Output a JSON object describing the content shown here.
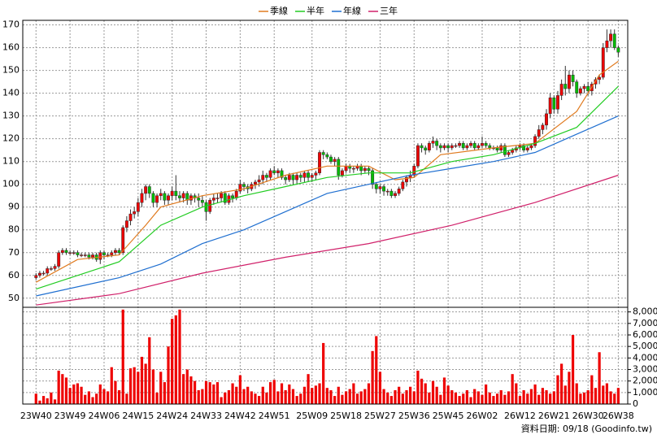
{
  "chart_data": {
    "type": "candlestick",
    "xlim": [
      -3.5,
      156.5
    ],
    "xticks": [
      {
        "value": 0,
        "label": "23W40"
      },
      {
        "value": 9,
        "label": "23W49"
      },
      {
        "value": 18,
        "label": "24W06"
      },
      {
        "value": 27,
        "label": "24W15"
      },
      {
        "value": 36,
        "label": "24W24"
      },
      {
        "value": 45,
        "label": "24W33"
      },
      {
        "value": 54,
        "label": "24W42"
      },
      {
        "value": 63,
        "label": "24W51"
      },
      {
        "value": 73,
        "label": "25W09"
      },
      {
        "value": 82,
        "label": "25W18"
      },
      {
        "value": 91,
        "label": "25W27"
      },
      {
        "value": 100,
        "label": "25W36"
      },
      {
        "value": 109,
        "label": "25W45"
      },
      {
        "value": 118,
        "label": "26W02"
      },
      {
        "value": 128,
        "label": "26W12"
      },
      {
        "value": 137,
        "label": "26W21"
      },
      {
        "value": 146,
        "label": "26W30"
      },
      {
        "value": 154,
        "label": "26W38"
      }
    ],
    "ylim": [
      46,
      172
    ],
    "yticks": [
      50,
      60,
      70,
      80,
      90,
      100,
      110,
      120,
      130,
      140,
      150,
      160,
      170
    ],
    "grid": true,
    "up_color": "#ee0000",
    "down_color": "#00bb00",
    "open": [
      59,
      60,
      61,
      61,
      63,
      63,
      64,
      70,
      71,
      70,
      70,
      70,
      69,
      69,
      69,
      68,
      69,
      67,
      70,
      69,
      69,
      70,
      71,
      70,
      81,
      84,
      87,
      88,
      92,
      96,
      99,
      96,
      92,
      95,
      96,
      93,
      95,
      97,
      95,
      94,
      96,
      93,
      95,
      94,
      93,
      92,
      88,
      93,
      94,
      94,
      96,
      92,
      95,
      94,
      97,
      100,
      99,
      98,
      100,
      101,
      102,
      104,
      103,
      106,
      105,
      106,
      103,
      102,
      104,
      102,
      104,
      103,
      105,
      103,
      104,
      105,
      114,
      113,
      112,
      110,
      111,
      104,
      106,
      108,
      107,
      107,
      108,
      106,
      107,
      106,
      100,
      98,
      99,
      97,
      97,
      95,
      96,
      98,
      101,
      103,
      104,
      108,
      117,
      116,
      115,
      118,
      119,
      117,
      116,
      117,
      116,
      117,
      117,
      118,
      116,
      117,
      118,
      116,
      117,
      118,
      117,
      116,
      116,
      115,
      117,
      113,
      114,
      115,
      116,
      117,
      115,
      116,
      117,
      121,
      124,
      126,
      131,
      138,
      133,
      139,
      144,
      142,
      148,
      145,
      140,
      142,
      143,
      141,
      144,
      146,
      147,
      160,
      163,
      166,
      160
    ],
    "high": [
      61,
      62,
      62,
      64,
      64,
      65,
      71,
      72,
      72,
      71,
      71,
      71,
      70,
      70,
      70,
      70,
      70,
      71,
      71,
      70,
      71,
      72,
      72,
      82,
      86,
      89,
      90,
      94,
      98,
      100,
      100,
      97,
      96,
      98,
      97,
      96,
      99,
      104,
      97,
      97,
      97,
      96,
      96,
      96,
      95,
      93,
      94,
      96,
      96,
      97,
      97,
      96,
      96,
      98,
      102,
      101,
      100,
      101,
      102,
      104,
      106,
      105,
      107,
      108,
      107,
      107,
      104,
      105,
      105,
      105,
      105,
      106,
      106,
      105,
      106,
      115,
      115,
      114,
      113,
      112,
      112,
      107,
      109,
      109,
      108,
      109,
      109,
      108,
      108,
      107,
      101,
      100,
      100,
      98,
      98,
      97,
      99,
      102,
      104,
      106,
      109,
      118,
      118,
      117,
      119,
      121,
      120,
      118,
      118,
      118,
      118,
      118,
      119,
      119,
      118,
      119,
      119,
      118,
      121,
      119,
      118,
      117,
      117,
      118,
      118,
      115,
      116,
      117,
      118,
      118,
      117,
      118,
      122,
      126,
      127,
      133,
      140,
      139,
      141,
      146,
      152,
      150,
      150,
      146,
      143,
      144,
      145,
      145,
      147,
      148,
      162,
      168,
      168,
      168,
      161
    ],
    "low": [
      58,
      59,
      60,
      60,
      62,
      62,
      63,
      69,
      69,
      69,
      69,
      68,
      68,
      68,
      67,
      67,
      66,
      65,
      67,
      68,
      68,
      69,
      69,
      69,
      79,
      82,
      85,
      86,
      90,
      93,
      94,
      90,
      90,
      93,
      91,
      91,
      93,
      93,
      92,
      92,
      91,
      91,
      92,
      90,
      90,
      84,
      87,
      91,
      92,
      92,
      91,
      91,
      92,
      93,
      96,
      97,
      96,
      97,
      98,
      99,
      100,
      101,
      102,
      104,
      103,
      102,
      100,
      101,
      100,
      100,
      101,
      101,
      101,
      101,
      102,
      104,
      111,
      111,
      109,
      108,
      102,
      103,
      105,
      105,
      105,
      106,
      104,
      105,
      104,
      98,
      96,
      96,
      95,
      95,
      94,
      94,
      95,
      97,
      99,
      101,
      103,
      107,
      114,
      113,
      114,
      116,
      115,
      114,
      115,
      114,
      115,
      116,
      116,
      115,
      115,
      116,
      115,
      115,
      116,
      116,
      115,
      115,
      114,
      114,
      112,
      112,
      113,
      114,
      115,
      114,
      114,
      115,
      116,
      120,
      122,
      124,
      129,
      131,
      131,
      137,
      139,
      140,
      143,
      138,
      139,
      140,
      139,
      139,
      142,
      144,
      146,
      158,
      160,
      159,
      156
    ],
    "close": [
      60,
      61,
      61,
      63,
      63,
      64,
      70,
      71,
      70,
      70,
      70,
      69,
      69,
      69,
      68,
      69,
      67,
      70,
      69,
      69,
      70,
      71,
      70,
      81,
      84,
      87,
      88,
      92,
      96,
      99,
      96,
      92,
      95,
      96,
      93,
      95,
      97,
      95,
      94,
      96,
      93,
      95,
      94,
      93,
      92,
      88,
      93,
      94,
      94,
      96,
      92,
      95,
      94,
      97,
      100,
      99,
      98,
      100,
      101,
      102,
      104,
      103,
      106,
      105,
      106,
      103,
      102,
      104,
      102,
      104,
      103,
      105,
      103,
      104,
      105,
      114,
      113,
      112,
      110,
      111,
      104,
      106,
      108,
      107,
      107,
      108,
      106,
      107,
      106,
      100,
      98,
      99,
      97,
      97,
      95,
      96,
      98,
      101,
      103,
      104,
      108,
      117,
      116,
      115,
      118,
      119,
      117,
      116,
      117,
      116,
      117,
      117,
      118,
      116,
      117,
      118,
      116,
      117,
      118,
      117,
      116,
      116,
      115,
      117,
      113,
      114,
      115,
      116,
      117,
      115,
      116,
      117,
      121,
      124,
      126,
      131,
      138,
      133,
      139,
      144,
      142,
      148,
      145,
      140,
      142,
      143,
      141,
      144,
      146,
      147,
      160,
      163,
      166,
      160,
      158
    ],
    "series": [
      {
        "name": "季線",
        "color": "#e07b20",
        "x": [
          0,
          11,
          22,
          29,
          33,
          44,
          55,
          66,
          77,
          88,
          95,
          100,
          107,
          121,
          132,
          143,
          149,
          154
        ],
        "values": [
          57,
          67,
          69,
          82,
          90,
          95,
          98,
          104,
          108,
          108,
          102,
          103,
          113,
          116,
          118,
          132,
          148,
          154
        ]
      },
      {
        "name": "半年",
        "color": "#22cc22",
        "x": [
          0,
          11,
          22,
          33,
          44,
          55,
          66,
          77,
          88,
          99,
          110,
          121,
          132,
          143,
          154
        ],
        "values": [
          54,
          60,
          66,
          82,
          90,
          95,
          99,
          103,
          105,
          105,
          110,
          113,
          118,
          125,
          143
        ]
      },
      {
        "name": "年線",
        "color": "#1f6fd0",
        "x": [
          0,
          22,
          33,
          44,
          55,
          66,
          77,
          88,
          99,
          110,
          121,
          132,
          143,
          154
        ],
        "values": [
          51,
          59,
          65,
          74,
          80,
          88,
          96,
          100,
          104,
          107,
          110,
          114,
          122,
          130
        ]
      },
      {
        "name": "三年",
        "color": "#d0206a",
        "x": [
          0,
          22,
          44,
          66,
          88,
          110,
          132,
          154
        ],
        "values": [
          47,
          52,
          61,
          68,
          74,
          82,
          92,
          104
        ]
      }
    ],
    "volume": {
      "color": "#ee0000",
      "ylim": [
        0,
        8400
      ],
      "yticks": [
        0,
        {
          "value": 1000,
          "label": "1,000"
        },
        {
          "value": 2000,
          "label": "2,000"
        },
        {
          "value": 3000,
          "label": "3,000"
        },
        {
          "value": 4000,
          "label": "4,000"
        },
        {
          "value": 5000,
          "label": "5,000"
        },
        {
          "value": 6000,
          "label": "6,000"
        },
        {
          "value": 7000,
          "label": "7,000"
        },
        {
          "value": 8000,
          "label": "8,000"
        }
      ],
      "values": [
        900,
        300,
        700,
        500,
        1000,
        400,
        2900,
        2600,
        2300,
        1400,
        1700,
        1800,
        1500,
        800,
        1100,
        600,
        900,
        1700,
        1300,
        1100,
        3200,
        2000,
        1200,
        8200,
        900,
        3100,
        3200,
        2800,
        4100,
        3500,
        5800,
        3000,
        1000,
        2800,
        1900,
        5000,
        7400,
        7700,
        8200,
        2600,
        3000,
        2400,
        2000,
        1200,
        1300,
        2000,
        1900,
        1700,
        1900,
        600,
        1000,
        1200,
        1800,
        1500,
        2500,
        1300,
        1500,
        1100,
        900,
        700,
        1500,
        1000,
        1900,
        2100,
        1100,
        1800,
        1200,
        1700,
        1300,
        700,
        900,
        1500,
        2600,
        1400,
        1600,
        1800,
        5300,
        1400,
        1200,
        700,
        1500,
        800,
        1100,
        1300,
        1800,
        900,
        1100,
        1300,
        1800,
        4600,
        5900,
        2800,
        1300,
        1000,
        700,
        1200,
        1500,
        900,
        1200,
        1500,
        1100,
        2900,
        2200,
        1800,
        1000,
        2000,
        1500,
        800,
        2300,
        1600,
        1200,
        1000,
        700,
        900,
        1200,
        600,
        1300,
        1100,
        800,
        1700,
        1000,
        700,
        900,
        1200,
        800,
        1100,
        2600,
        1800,
        700,
        1200,
        900,
        1300,
        1700,
        800,
        1400,
        1200,
        900,
        1100,
        2500,
        3500,
        1600,
        2800,
        6000,
        1800,
        900,
        1000,
        1200,
        2500,
        1400,
        4500,
        1600,
        1800,
        1100,
        900,
        1400
      ]
    },
    "source": "資料日期: 09/18 (Goodinfo.tw)"
  }
}
